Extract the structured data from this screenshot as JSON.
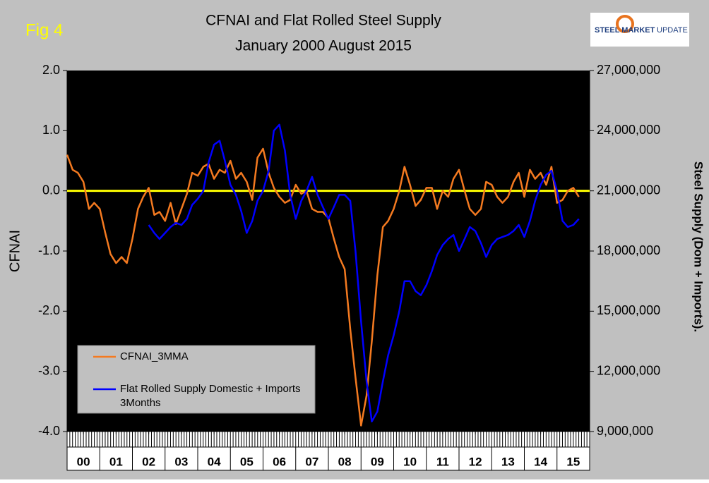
{
  "chart_data": {
    "type": "line",
    "title": "CFNAI and Flat Rolled Steel Supply",
    "subtitle": "January 2000 August 2015",
    "annotation": "Fig 4",
    "logo_text": [
      "STEEL MARKET",
      "UPDATE"
    ],
    "y_label": "CFNAI",
    "y2_label": "Steel Supply (Dom + Imports).",
    "background": "#c0c0c0",
    "plot_background": "#000000",
    "legend": "bottom-left",
    "reference_line": {
      "value": 0,
      "color": "#ffff00"
    },
    "xlim": [
      2000,
      2016
    ],
    "xticks": [
      {
        "value": 2000.5,
        "label": "00"
      },
      {
        "value": 2001.5,
        "label": "01"
      },
      {
        "value": 2002.5,
        "label": "02"
      },
      {
        "value": 2003.5,
        "label": "03"
      },
      {
        "value": 2004.5,
        "label": "04"
      },
      {
        "value": 2005.5,
        "label": "05"
      },
      {
        "value": 2006.5,
        "label": "06"
      },
      {
        "value": 2007.5,
        "label": "07"
      },
      {
        "value": 2008.5,
        "label": "08"
      },
      {
        "value": 2009.5,
        "label": "09"
      },
      {
        "value": 2010.5,
        "label": "10"
      },
      {
        "value": 2011.5,
        "label": "11"
      },
      {
        "value": 2012.5,
        "label": "12"
      },
      {
        "value": 2013.5,
        "label": "13"
      },
      {
        "value": 2014.5,
        "label": "14"
      },
      {
        "value": 2015.5,
        "label": "15"
      }
    ],
    "ylim": [
      -4,
      2
    ],
    "yticks": [
      {
        "value": 2,
        "label": "2.0"
      },
      {
        "value": 1,
        "label": "1.0"
      },
      {
        "value": 0,
        "label": "0.0"
      },
      {
        "value": -1,
        "label": "-1.0"
      },
      {
        "value": -2,
        "label": "-2.0"
      },
      {
        "value": -3,
        "label": "-3.0"
      },
      {
        "value": -4,
        "label": "-4.0"
      }
    ],
    "y2lim": [
      9000000,
      27000000
    ],
    "y2ticks": [
      {
        "value": 27000000,
        "label": "27,000,000"
      },
      {
        "value": 24000000,
        "label": "24,000,000"
      },
      {
        "value": 21000000,
        "label": "21,000,000"
      },
      {
        "value": 18000000,
        "label": "18,000,000"
      },
      {
        "value": 15000000,
        "label": "15,000,000"
      },
      {
        "value": 12000000,
        "label": "12,000,000"
      },
      {
        "value": 9000000,
        "label": "9,000,000"
      }
    ],
    "x": [
      2000.0,
      2000.17,
      2000.33,
      2000.5,
      2000.67,
      2000.83,
      2001.0,
      2001.17,
      2001.33,
      2001.5,
      2001.67,
      2001.83,
      2002.0,
      2002.17,
      2002.33,
      2002.5,
      2002.67,
      2002.83,
      2003.0,
      2003.17,
      2003.33,
      2003.5,
      2003.67,
      2003.83,
      2004.0,
      2004.17,
      2004.33,
      2004.5,
      2004.67,
      2004.83,
      2005.0,
      2005.17,
      2005.33,
      2005.5,
      2005.67,
      2005.83,
      2006.0,
      2006.17,
      2006.33,
      2006.5,
      2006.67,
      2006.83,
      2007.0,
      2007.17,
      2007.33,
      2007.5,
      2007.67,
      2007.83,
      2008.0,
      2008.17,
      2008.33,
      2008.5,
      2008.67,
      2008.83,
      2009.0,
      2009.17,
      2009.33,
      2009.5,
      2009.67,
      2009.83,
      2010.0,
      2010.17,
      2010.33,
      2010.5,
      2010.67,
      2010.83,
      2011.0,
      2011.17,
      2011.33,
      2011.5,
      2011.67,
      2011.83,
      2012.0,
      2012.17,
      2012.33,
      2012.5,
      2012.67,
      2012.83,
      2013.0,
      2013.17,
      2013.33,
      2013.5,
      2013.67,
      2013.83,
      2014.0,
      2014.17,
      2014.33,
      2014.5,
      2014.67,
      2014.83,
      2015.0,
      2015.17,
      2015.33,
      2015.5,
      2015.67
    ],
    "series": [
      {
        "name": "CFNAI_3MMA",
        "color": "#f47a20",
        "values": [
          0.6,
          0.35,
          0.3,
          0.15,
          -0.3,
          -0.2,
          -0.3,
          -0.7,
          -1.05,
          -1.2,
          -1.1,
          -1.2,
          -0.8,
          -0.3,
          -0.1,
          0.05,
          -0.4,
          -0.35,
          -0.5,
          -0.2,
          -0.55,
          -0.3,
          -0.05,
          0.3,
          0.25,
          0.4,
          0.45,
          0.2,
          0.35,
          0.3,
          0.5,
          0.2,
          0.3,
          0.15,
          -0.15,
          0.55,
          0.7,
          0.3,
          0.05,
          -0.1,
          -0.2,
          -0.15,
          0.1,
          -0.05,
          0.0,
          -0.3,
          -0.35,
          -0.35,
          -0.45,
          -0.8,
          -1.1,
          -1.3,
          -2.3,
          -3.1,
          -3.9,
          -3.4,
          -2.5,
          -1.4,
          -0.6,
          -0.5,
          -0.3,
          0.0,
          0.4,
          0.1,
          -0.25,
          -0.15,
          0.05,
          0.05,
          -0.3,
          0.0,
          -0.1,
          0.2,
          0.35,
          0.0,
          -0.3,
          -0.4,
          -0.3,
          0.15,
          0.1,
          -0.1,
          -0.2,
          -0.1,
          0.15,
          0.3,
          -0.1,
          0.35,
          0.2,
          0.3,
          0.1,
          0.4,
          -0.2,
          -0.15,
          0.0,
          0.05,
          -0.1
        ]
      },
      {
        "name": "Flat Rolled Supply Domestic + Imports 3Months",
        "color": "#0000ff",
        "axis": "y2",
        "values": [
          null,
          null,
          null,
          null,
          null,
          null,
          null,
          null,
          null,
          null,
          null,
          null,
          null,
          null,
          null,
          19300000,
          18900000,
          18600000,
          18900000,
          19200000,
          19400000,
          19300000,
          19600000,
          20300000,
          20600000,
          21000000,
          22400000,
          23300000,
          23500000,
          22500000,
          21300000,
          20800000,
          20000000,
          18900000,
          19500000,
          20500000,
          21000000,
          22000000,
          24000000,
          24300000,
          23000000,
          20800000,
          19600000,
          20500000,
          21000000,
          21700000,
          20800000,
          20200000,
          19600000,
          20200000,
          20800000,
          20800000,
          20500000,
          18000000,
          14500000,
          11500000,
          9500000,
          10000000,
          11500000,
          12800000,
          13800000,
          15000000,
          16500000,
          16500000,
          16000000,
          15800000,
          16300000,
          17000000,
          17800000,
          18300000,
          18600000,
          18800000,
          18000000,
          18600000,
          19200000,
          19000000,
          18400000,
          17700000,
          18300000,
          18600000,
          18700000,
          18800000,
          19000000,
          19300000,
          18700000,
          19500000,
          20500000,
          21300000,
          21800000,
          22000000,
          21000000,
          19500000,
          19200000,
          19300000,
          19600000
        ]
      }
    ]
  }
}
